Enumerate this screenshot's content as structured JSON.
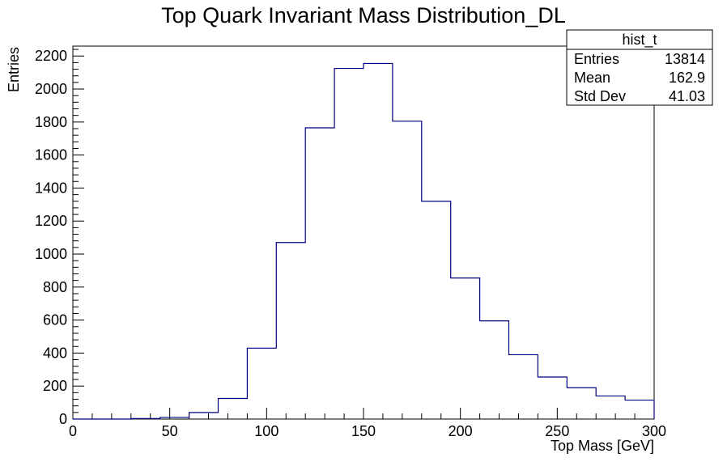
{
  "chart_data": {
    "type": "bar",
    "style": "step-histogram",
    "title": "Top Quark Invariant Mass Distribution_DL",
    "xlabel": "Top Mass [GeV]",
    "ylabel": "Entries",
    "xlim": [
      0,
      300
    ],
    "ylim": [
      0,
      2260
    ],
    "bin_width": 15,
    "x": [
      0,
      15,
      30,
      45,
      60,
      75,
      90,
      105,
      120,
      135,
      150,
      165,
      180,
      195,
      210,
      225,
      240,
      255,
      270,
      285
    ],
    "values": [
      0,
      0,
      3,
      10,
      40,
      125,
      430,
      1070,
      1765,
      2125,
      2155,
      1805,
      1320,
      855,
      595,
      390,
      255,
      190,
      140,
      115
    ],
    "x_ticks": [
      0,
      50,
      100,
      150,
      200,
      250,
      300
    ],
    "y_ticks": [
      0,
      200,
      400,
      600,
      800,
      1000,
      1200,
      1400,
      1600,
      1800,
      2000,
      2200
    ],
    "line_color": "#000080",
    "grid": false,
    "stats_box": {
      "name": "hist_t",
      "rows": [
        {
          "label": "Entries",
          "value": "13814"
        },
        {
          "label": "Mean",
          "value": "162.9"
        },
        {
          "label": "Std Dev",
          "value": "41.03"
        }
      ],
      "placement": "top-right"
    }
  }
}
